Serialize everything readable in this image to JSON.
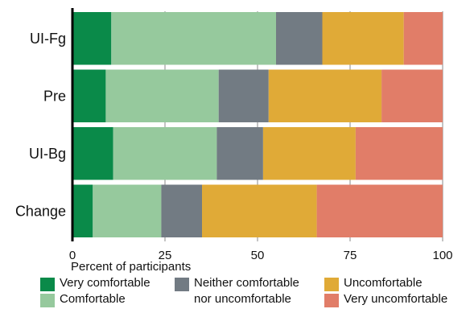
{
  "chart_data": {
    "type": "bar",
    "orientation": "horizontal",
    "stacked": true,
    "categories": [
      "UI-Fg",
      "Pre",
      "UI-Bg",
      "Change"
    ],
    "series": [
      {
        "name": "Very comfortable",
        "color": "#0a8a49",
        "values": [
          10.5,
          9,
          11,
          5.5
        ]
      },
      {
        "name": "Comfortable",
        "color": "#96c99d",
        "values": [
          44.5,
          30.5,
          28,
          18.5
        ]
      },
      {
        "name": "Neither comfortable nor uncomfortable",
        "color": "#727b83",
        "values": [
          12.5,
          13.5,
          12.5,
          11
        ]
      },
      {
        "name": "Uncomfortable",
        "color": "#e0aa37",
        "values": [
          22,
          30.5,
          25,
          31
        ]
      },
      {
        "name": "Very uncomfortable",
        "color": "#e17d68",
        "values": [
          10.5,
          16.5,
          23.5,
          34
        ]
      }
    ],
    "xlabel": "Percent of participants",
    "ylabel": "",
    "xlim": [
      0,
      100
    ],
    "xticks": [
      "0",
      "25",
      "50",
      "75",
      "100"
    ],
    "grid": true,
    "legend_position": "bottom"
  }
}
